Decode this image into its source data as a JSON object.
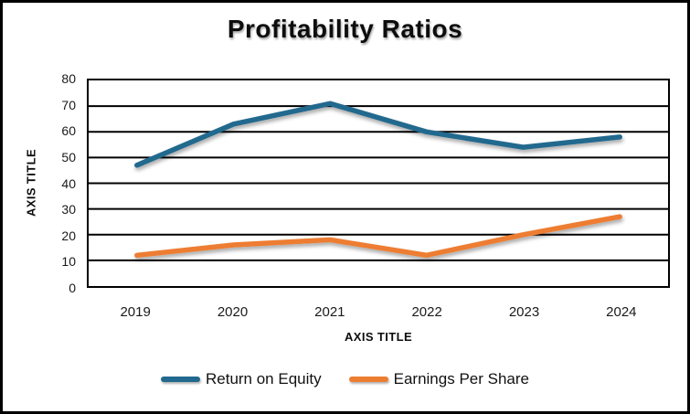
{
  "chart_data": {
    "type": "line",
    "title": "Profitability Ratios",
    "xlabel": "AXIS TITLE",
    "ylabel": "AXIS TITLE",
    "categories": [
      "2019",
      "2020",
      "2021",
      "2022",
      "2023",
      "2024"
    ],
    "series": [
      {
        "name": "Return on Equity",
        "color": "#21698E",
        "values": [
          47,
          63,
          71,
          60,
          54,
          58
        ]
      },
      {
        "name": "Earnings Per Share",
        "color": "#ED7D31",
        "values": [
          12,
          16,
          18,
          12,
          20,
          27
        ]
      }
    ],
    "ylim": [
      0,
      80
    ],
    "ytick_step": 10,
    "grid": "horizontal",
    "gridline_color": "#000000",
    "legend_position": "bottom",
    "plot_border_color": "#000000"
  }
}
